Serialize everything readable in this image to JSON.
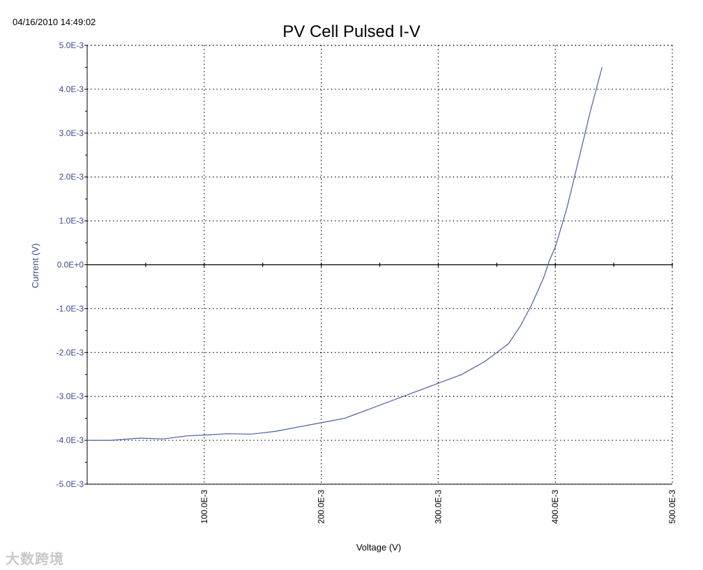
{
  "header": {
    "timestamp": "04/16/2010 14:49:02"
  },
  "watermark": {
    "text": "大数跨境"
  },
  "colors": {
    "curve": "#4a5aa8",
    "axis_text": "#3a4a8a",
    "grid": "#000000"
  },
  "chart_data": {
    "type": "line",
    "title": "PV Cell Pulsed I-V",
    "xlabel": "Voltage (V)",
    "ylabel": "Current (V)",
    "xlim": [
      0,
      0.5
    ],
    "ylim": [
      -0.005,
      0.005
    ],
    "x_tick_values": [
      0.1,
      0.2,
      0.3,
      0.4,
      0.5
    ],
    "x_tick_labels": [
      "100.0E-3",
      "200.0E-3",
      "300.0E-3",
      "400.0E-3",
      "500.0E-3"
    ],
    "y_tick_values": [
      0.005,
      0.004,
      0.003,
      0.002,
      0.001,
      0,
      -0.001,
      -0.002,
      -0.003,
      -0.004,
      -0.005
    ],
    "y_tick_labels": [
      "5.0E-3",
      "4.0E-3",
      "3.0E-3",
      "2.0E-3",
      "1.0E-3",
      "0.0E+0",
      "-1.0E-3",
      "-2.0E-3",
      "-3.0E-3",
      "-4.0E-3",
      "-5.0E-3"
    ],
    "grid": true,
    "series": [
      {
        "x": [
          0.0,
          0.02,
          0.045,
          0.065,
          0.085,
          0.1,
          0.12,
          0.14,
          0.16,
          0.18,
          0.2,
          0.22,
          0.24,
          0.26,
          0.28,
          0.3,
          0.32,
          0.34,
          0.36,
          0.37,
          0.38,
          0.39,
          0.395,
          0.4,
          0.41,
          0.42,
          0.43,
          0.44
        ],
        "y": [
          -0.004,
          -0.004,
          -0.00395,
          -0.00397,
          -0.0039,
          -0.00388,
          -0.00385,
          -0.00386,
          -0.0038,
          -0.0037,
          -0.0036,
          -0.0035,
          -0.0033,
          -0.0031,
          -0.0029,
          -0.0027,
          -0.0025,
          -0.0022,
          -0.0018,
          -0.0014,
          -0.0009,
          -0.0003,
          0.0001,
          0.0004,
          0.0013,
          0.0024,
          0.0035,
          0.0045
        ]
      }
    ]
  }
}
